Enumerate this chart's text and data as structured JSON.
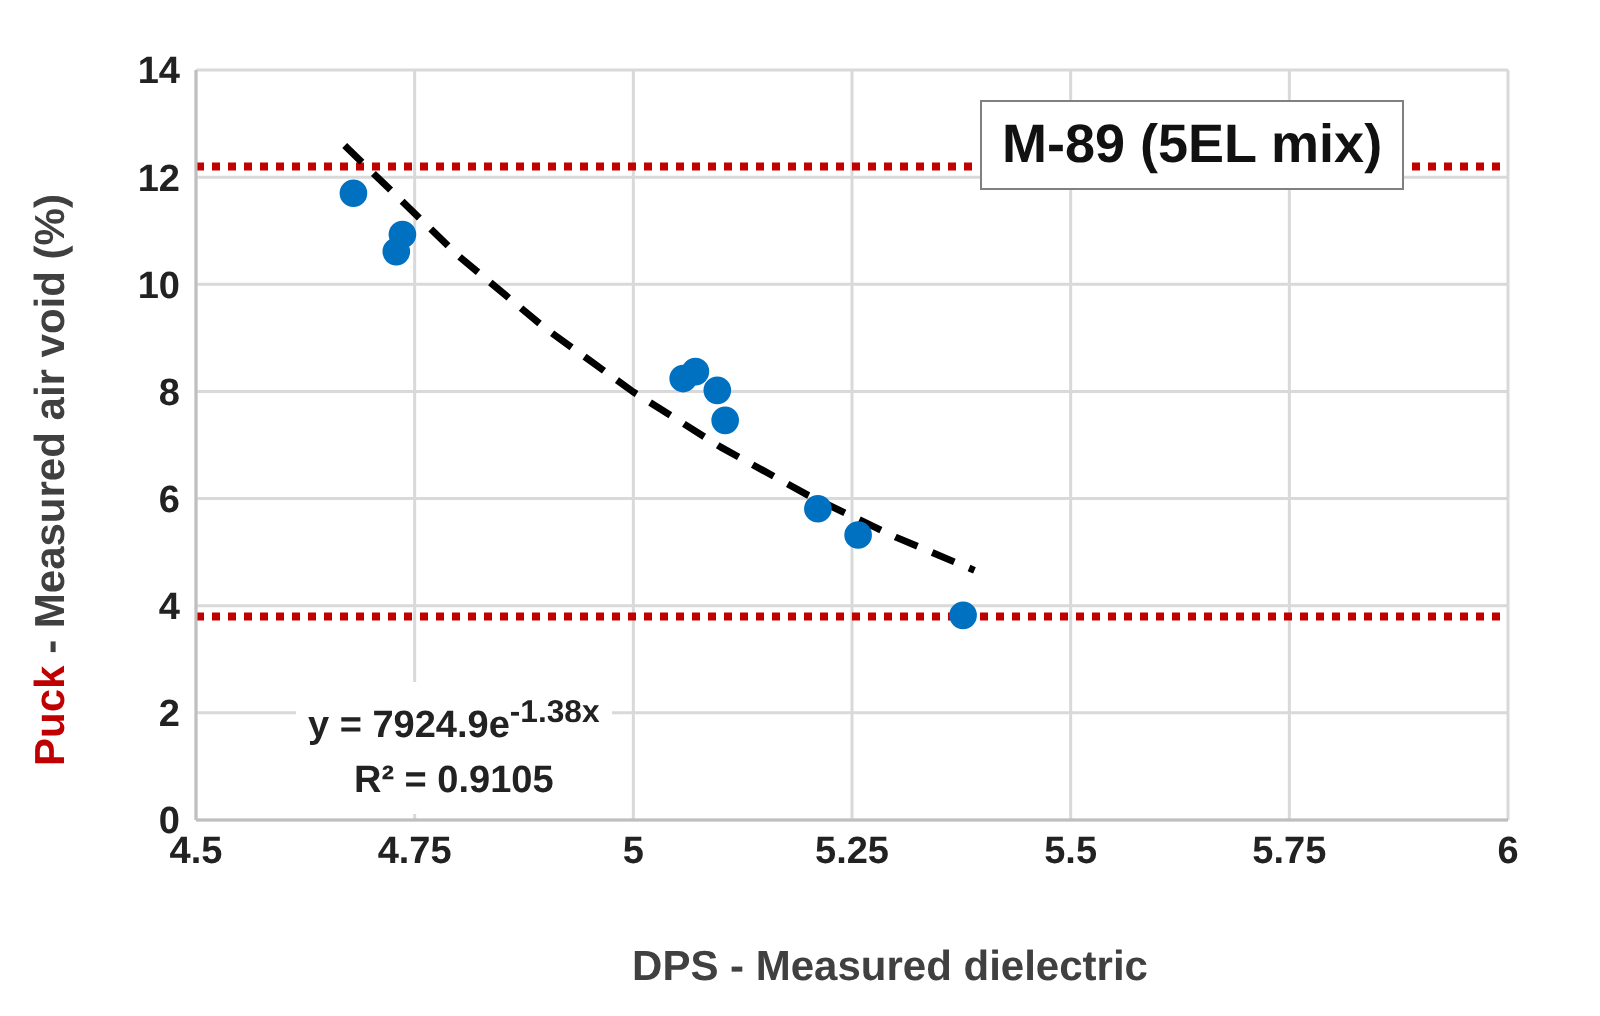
{
  "chart_data": {
    "type": "scatter",
    "xlabel": "DPS - Measured dielectric",
    "ylabel": "Puck - Measured air void (%)",
    "annotations": [
      "M-89 (5EL mix)",
      "y = 7924.9e$^{-1.38x}$",
      "R² = 0.9105"
    ],
    "xlim": [
      4.5,
      6
    ],
    "xticks": [
      4.5,
      4.75,
      5,
      5.25,
      5.5,
      5.75,
      6
    ],
    "ylim": [
      0,
      14
    ],
    "yticks": [
      0,
      2,
      4,
      6,
      8,
      10,
      12,
      14
    ],
    "grid": true,
    "marker": "circle",
    "ref_lines": [
      {
        "axis": "y",
        "value": 12.2,
        "color": "#c00000",
        "line_style": "dotted"
      },
      {
        "axis": "y",
        "value": 3.8,
        "color": "#c00000",
        "line_style": "dotted"
      }
    ],
    "series": [
      {
        "type": "scatter",
        "color": "#0070c0",
        "x": [
          4.68,
          4.736,
          4.729,
          5.057,
          5.071,
          5.096,
          5.105,
          5.211,
          5.257,
          5.377
        ],
        "values": [
          11.7,
          10.93,
          10.61,
          8.24,
          8.37,
          8.02,
          7.46,
          5.81,
          5.32,
          3.82
        ]
      },
      {
        "type": "line",
        "color": "#000000",
        "line_style": "dashed",
        "marker": "none",
        "x": [
          4.67,
          4.8,
          4.9,
          5.0,
          5.1,
          5.2,
          5.3,
          5.39
        ],
        "values": [
          12.59,
          10.53,
          9.17,
          7.99,
          6.96,
          6.06,
          5.28,
          4.66
        ]
      }
    ]
  }
}
